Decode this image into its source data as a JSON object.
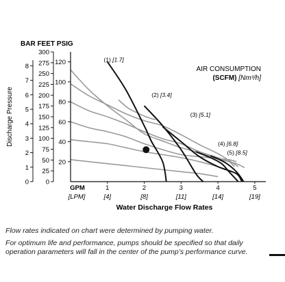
{
  "chart_data": {
    "type": "line",
    "units_header": "BAR FEET PSIG",
    "ylabel": "Discharge Pressure",
    "xlabel": "Water Discharge Flow Rates",
    "x_unit_gpm": "GPM",
    "x_unit_lpm": "[LPM]",
    "x_ticks": [
      {
        "gpm": "1",
        "lpm": "[4]"
      },
      {
        "gpm": "2",
        "lpm": "[8]"
      },
      {
        "gpm": "3",
        "lpm": "[11]"
      },
      {
        "gpm": "4",
        "lpm": "[14]"
      },
      {
        "gpm": "5",
        "lpm": "[19]"
      }
    ],
    "xlim": [
      0,
      5.3
    ],
    "ylim_psig": [
      0,
      130
    ],
    "bar_ticks": [
      "0",
      "1",
      "2",
      "3",
      "4",
      "5",
      "6",
      "7",
      "8"
    ],
    "feet_ticks": [
      "0",
      "25",
      "50",
      "75",
      "100",
      "125",
      "150",
      "175",
      "200",
      "225",
      "250",
      "275",
      "300"
    ],
    "psig_ticks": [
      "20",
      "40",
      "60",
      "80",
      "100",
      "120"
    ],
    "air_title": "AIR CONSUMPTION",
    "air_unit_bold": "(SCFM)",
    "air_unit_metric": "[Nm³/h]",
    "air_curves": [
      {
        "label": "(1)",
        "metric": "[1.7]",
        "points": [
          [
            1.3,
            82
          ],
          [
            1.55,
            74
          ],
          [
            1.75,
            70
          ],
          [
            2.05,
            65
          ],
          [
            2.3,
            62
          ]
        ],
        "label_at": [
          0.9,
          120
        ]
      },
      {
        "label": "(2)",
        "metric": "[3.4]",
        "points": [
          [
            0.0,
            112
          ],
          [
            0.5,
            92
          ],
          [
            1.0,
            76
          ],
          [
            1.5,
            62
          ],
          [
            2.0,
            48
          ],
          [
            2.55,
            40
          ],
          [
            3.0,
            34
          ],
          [
            3.5,
            29
          ],
          [
            4.0,
            23
          ],
          [
            4.5,
            18
          ],
          [
            4.72,
            14
          ]
        ],
        "label_at": [
          2.2,
          85
        ]
      },
      {
        "label": "(3)",
        "metric": "[5.1]",
        "points": [
          [
            0.0,
            98
          ],
          [
            0.5,
            86
          ],
          [
            1.0,
            77
          ],
          [
            1.5,
            68
          ],
          [
            2.0,
            61
          ],
          [
            2.5,
            56
          ],
          [
            3.0,
            47
          ],
          [
            3.5,
            37
          ],
          [
            4.0,
            28
          ],
          [
            4.35,
            20
          ],
          [
            4.55,
            15
          ]
        ],
        "label_at": [
          3.25,
          65
        ]
      },
      {
        "label": "(4)",
        "metric": "[6.8]",
        "points": [
          [
            0.0,
            80
          ],
          [
            0.5,
            71
          ],
          [
            1.0,
            65
          ],
          [
            1.5,
            58
          ],
          [
            2.0,
            50
          ],
          [
            2.5,
            43
          ],
          [
            3.0,
            38
          ],
          [
            3.5,
            30
          ],
          [
            4.0,
            24
          ],
          [
            4.3,
            20
          ],
          [
            4.45,
            15
          ]
        ],
        "label_at": [
          4.0,
          36
        ]
      },
      {
        "label": "(5)",
        "metric": "[8.5]",
        "points": [
          [
            0.0,
            60
          ],
          [
            0.5,
            54
          ],
          [
            1.0,
            50
          ],
          [
            1.5,
            45
          ],
          [
            2.0,
            38
          ],
          [
            2.5,
            32
          ],
          [
            3.0,
            27
          ],
          [
            3.5,
            25
          ],
          [
            4.0,
            23
          ],
          [
            4.3,
            22
          ],
          [
            4.5,
            20
          ]
        ],
        "label_at": [
          4.25,
          27
        ]
      },
      {
        "points": [
          [
            0.0,
            42
          ],
          [
            0.5,
            40
          ],
          [
            1.0,
            38
          ],
          [
            1.5,
            34
          ],
          [
            2.0,
            30
          ],
          [
            2.5,
            27
          ],
          [
            3.0,
            24
          ],
          [
            3.5,
            20
          ],
          [
            4.0,
            15
          ],
          [
            4.4,
            10
          ]
        ]
      },
      {
        "points": [
          [
            0.0,
            22
          ],
          [
            0.5,
            20
          ],
          [
            1.0,
            18
          ],
          [
            1.5,
            16
          ],
          [
            2.0,
            14
          ],
          [
            2.5,
            12
          ],
          [
            3.0,
            10
          ],
          [
            3.5,
            8
          ],
          [
            4.0,
            5
          ]
        ]
      }
    ],
    "performance_curves": [
      {
        "points": [
          [
            1.0,
            120
          ],
          [
            1.5,
            92
          ],
          [
            2.0,
            56
          ],
          [
            2.2,
            40
          ],
          [
            2.5,
            20
          ],
          [
            2.6,
            0
          ]
        ]
      },
      {
        "points": [
          [
            2.0,
            76
          ],
          [
            2.5,
            56
          ],
          [
            3.0,
            32
          ],
          [
            3.4,
            8
          ],
          [
            3.6,
            0
          ]
        ]
      },
      {
        "points": [
          [
            2.5,
            55
          ],
          [
            3.0,
            40
          ],
          [
            3.5,
            25
          ],
          [
            4.0,
            15
          ],
          [
            4.5,
            8
          ],
          [
            4.65,
            0
          ]
        ]
      },
      {
        "points": [
          [
            3.4,
            30
          ],
          [
            3.8,
            24
          ],
          [
            4.1,
            18
          ],
          [
            4.3,
            10
          ],
          [
            4.55,
            0
          ]
        ]
      },
      {
        "points": [
          [
            3.8,
            26
          ],
          [
            4.2,
            19
          ],
          [
            4.5,
            10
          ],
          [
            4.7,
            0
          ]
        ]
      }
    ],
    "operating_point": {
      "gpm": 2.05,
      "psig": 32
    },
    "grid": false
  },
  "notes": {
    "note1": "Flow rates indicated on chart were determined by pumping water.",
    "note2": "For optimum life and performance, pumps should be specified so that daily operation parameters will fall in the center of the pump’s performance curve."
  }
}
